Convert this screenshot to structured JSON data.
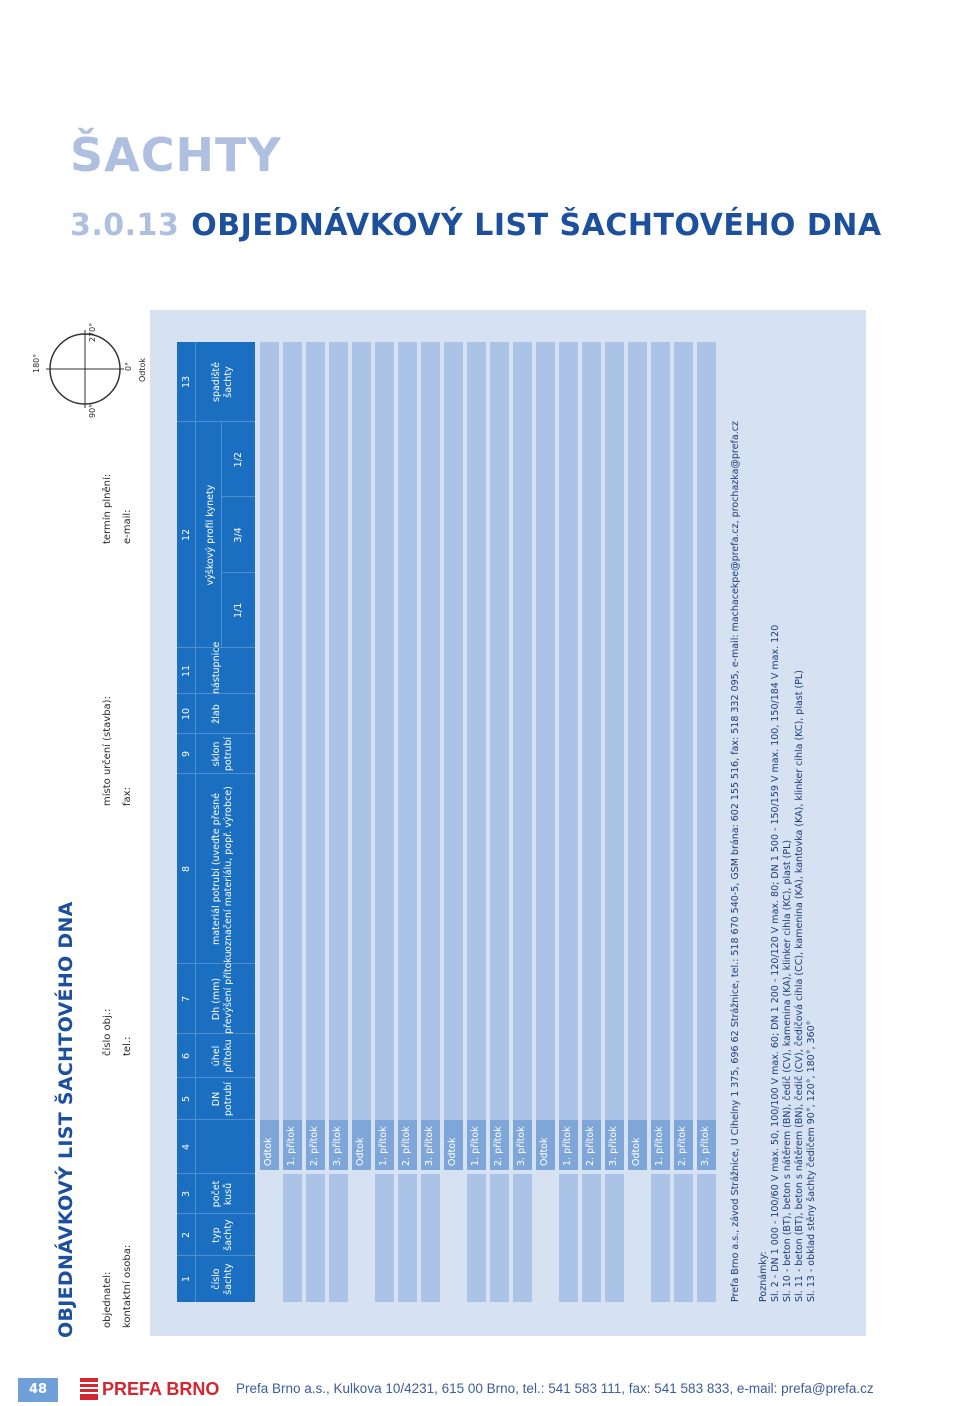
{
  "header": {
    "section": "ŠACHTY",
    "number": "3.0.13",
    "title": "OBJEDNÁVKOVÝ LIST ŠACHTOVÉHO DNA"
  },
  "form": {
    "title": "OBJEDNÁVKOVÝ LIST ŠACHTOVÉHO DNA",
    "contacts": {
      "objednatel": "objednatel:",
      "kontaktni_osoba": "kontaktní osoba:",
      "cislo_obj": "číslo obj.:",
      "tel": "tel.:",
      "misto_urceni": "místo určení (stavba):",
      "fax": "fax:",
      "termin_plneni": "termín plnění:",
      "email": "e-mail:"
    },
    "columns": [
      {
        "num": "1",
        "label1": "číslo",
        "label2": "šachty"
      },
      {
        "num": "2",
        "label1": "typ",
        "label2": "šachty"
      },
      {
        "num": "3",
        "label1": "počet",
        "label2": "kusů"
      },
      {
        "num": "4",
        "label1": "",
        "label2": ""
      },
      {
        "num": "5",
        "label1": "DN",
        "label2": "potrubí"
      },
      {
        "num": "6",
        "label1": "úhel",
        "label2": "přítoku"
      },
      {
        "num": "7",
        "label1": "Dh (mm)",
        "label2": "převýšení přítoku"
      },
      {
        "num": "8",
        "label1": "materiál potrubí (uveďte přesné",
        "label2": "označení materiálu, popř. výrobce)"
      },
      {
        "num": "9",
        "label1": "sklon",
        "label2": "potrubí"
      },
      {
        "num": "10",
        "label1": "žlab",
        "label2": ""
      },
      {
        "num": "11",
        "label1": "nástupnice",
        "label2": ""
      },
      {
        "num": "12",
        "label1": "výškový profil kynety",
        "label2": ""
      },
      {
        "num": "13",
        "label1": "spadiště",
        "label2": "šachty"
      }
    ],
    "profile_sub": [
      "1/1",
      "3/4",
      "1/2"
    ],
    "row_labels": [
      "Odtok",
      "1. přítok",
      "2. přítok",
      "3. přítok",
      "Odtok",
      "1. přítok",
      "2. přítok",
      "3. přítok",
      "Odtok",
      "1. přítok",
      "2. přítok",
      "3. přítok",
      "Odtok",
      "1. přítok",
      "2. přítok",
      "3. přítok",
      "Odtok",
      "1. přítok",
      "2. přítok",
      "3. přítok"
    ],
    "footer_info": "Prefa Brno a.s., závod Strážnice, U Cihelny 1 375, 696 62 Strážnice, tel.: 518 670 540-5, GSM brána: 602 155 516, fax: 518 332 095, e-mail: machacekpe@prefa.cz, prochazka@prefa.cz",
    "notes_title": "Poznámky:",
    "notes": [
      "Sl. 2 - DN 1 000 - 100/60 V max. 50, 100/100 V max. 60; DN 1 200 - 120/120 V max. 80; DN 1 500 - 150/159 V max. 100, 150/184 V max. 120",
      "Sl. 10 - beton (BT), beton s nátěrem (BN), čedič (CV), kamenina (KA), klinker cihla (KC), plast (PL)",
      "Sl. 11 - beton (BT), beton s nátěrem (BN), čedič (CV), čedičová cihla (CC), kamenina (KA), kantovka (KA), klinker cihla (KC), plast (PL)",
      "Sl. 13 - obklad stěny šachty čedičem 90°, 120°, 180°, 360°"
    ],
    "angle_diagram": {
      "labels": [
        "180°",
        "90°",
        "270°",
        "0°"
      ],
      "caption": "Odtok"
    }
  },
  "footer": {
    "page_number": "48",
    "logo_text": "PREFA BRNO",
    "address": "Prefa Brno a.s., Kulkova 10/4231, 615 00 Brno, tel.: 541 583 111, fax: 541 583 833, e-mail: prefa@prefa.cz"
  },
  "colors": {
    "accent_blue": "#1b6fc1",
    "light_blue": "#aebfe0",
    "sheet_bg": "#d6e2f2",
    "brand_red": "#d22630"
  }
}
